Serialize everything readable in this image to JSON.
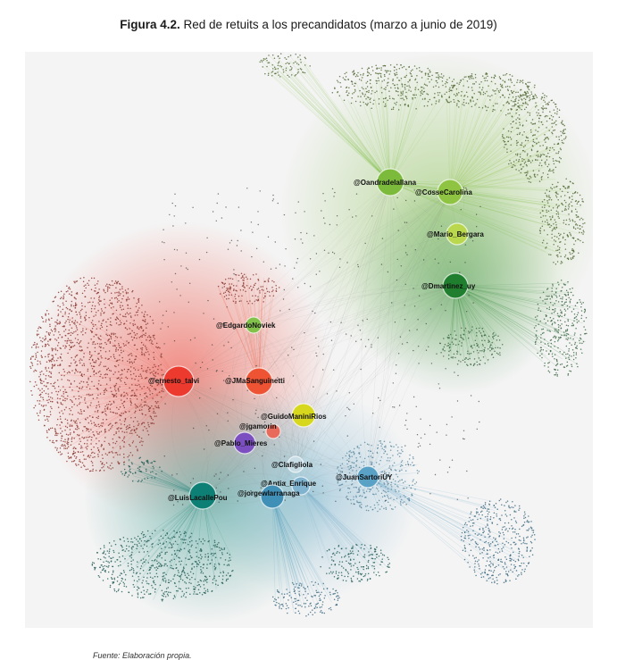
{
  "title_prefix": "Figura 4.2.",
  "title_text": " Red de retuits a los precandidatos (marzo a junio de 2019)",
  "source_note": "Fuente: Elaboración propia.",
  "nodes": [
    {
      "label": "@Oandradelallana",
      "color": "#7cba3c"
    },
    {
      "label": "@CosseCarolina",
      "color": "#8fc443"
    },
    {
      "label": "@Mario_Bergara",
      "color": "#b9d84d"
    },
    {
      "label": "@Dmartinez_uy",
      "color": "#1f7f2e"
    },
    {
      "label": "@EdgardoNoviek",
      "color": "#82c14a"
    },
    {
      "label": "@ernesto_talvi",
      "color": "#ec3a2f"
    },
    {
      "label": "@JMaSanguinetti",
      "color": "#ee5334"
    },
    {
      "label": "@GuidoManiniRios",
      "color": "#d7d81e"
    },
    {
      "label": "@jgamorin",
      "color": "#e76a5a"
    },
    {
      "label": "@Pablo_Mieres",
      "color": "#7b4fc0"
    },
    {
      "label": "@Clafigliola",
      "color": "#c8dde6"
    },
    {
      "label": "@JuanSartoriUY",
      "color": "#5aa1c6"
    },
    {
      "label": "@Antia_Enrique",
      "color": "#7fb3cf"
    },
    {
      "label": "@jorgewlarranaga",
      "color": "#3f8fb6"
    },
    {
      "label": "@LuisLacallePou",
      "color": "#0e7f74"
    }
  ]
}
